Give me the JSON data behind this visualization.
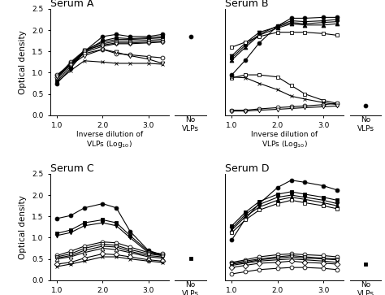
{
  "x_ticks": [
    1.0,
    2.0,
    3.0
  ],
  "x_vals": [
    1.0,
    1.3,
    1.6,
    2.0,
    2.3,
    2.6,
    3.0,
    3.3
  ],
  "serum_A": {
    "title": "Serum A",
    "no_vlp_y": 1.85,
    "no_vlp_marker": "o",
    "no_vlp_filled": true,
    "series": [
      {
        "y": [
          0.75,
          1.1,
          1.5,
          1.85,
          1.9,
          1.85,
          1.85,
          1.9
        ],
        "marker": "o",
        "filled": true
      },
      {
        "y": [
          0.8,
          1.15,
          1.5,
          1.75,
          1.82,
          1.8,
          1.82,
          1.85
        ],
        "marker": "s",
        "filled": true
      },
      {
        "y": [
          0.85,
          1.2,
          1.52,
          1.72,
          1.78,
          1.78,
          1.8,
          1.82
        ],
        "marker": "v",
        "filled": true
      },
      {
        "y": [
          0.88,
          1.22,
          1.5,
          1.68,
          1.74,
          1.74,
          1.76,
          1.78
        ],
        "marker": "s",
        "filled": false
      },
      {
        "y": [
          0.9,
          1.25,
          1.52,
          1.65,
          1.7,
          1.7,
          1.72,
          1.74
        ],
        "marker": "o",
        "filled": false
      },
      {
        "y": [
          0.92,
          1.22,
          1.48,
          1.62,
          1.68,
          1.68,
          1.7,
          1.72
        ],
        "marker": "v",
        "filled": false
      },
      {
        "y": [
          0.95,
          1.2,
          1.45,
          1.55,
          1.45,
          1.42,
          1.38,
          1.35
        ],
        "marker": "o",
        "filled": false
      },
      {
        "y": [
          0.78,
          1.05,
          1.28,
          1.25,
          1.22,
          1.22,
          1.22,
          1.2
        ],
        "marker": "x",
        "filled": false
      },
      {
        "y": [
          0.92,
          1.18,
          1.4,
          1.55,
          1.48,
          1.4,
          1.32,
          1.22
        ],
        "marker": "v",
        "filled": false
      }
    ]
  },
  "serum_B": {
    "title": "Serum B",
    "no_vlp_y": 0.22,
    "no_vlp_marker": "o",
    "no_vlp_filled": true,
    "series": [
      {
        "y": [
          0.95,
          1.3,
          1.7,
          2.1,
          2.28,
          2.28,
          2.3,
          2.3
        ],
        "marker": "o",
        "filled": true
      },
      {
        "y": [
          1.35,
          1.65,
          1.9,
          2.1,
          2.22,
          2.2,
          2.22,
          2.25
        ],
        "marker": "s",
        "filled": true
      },
      {
        "y": [
          1.4,
          1.7,
          1.95,
          2.08,
          2.18,
          2.15,
          2.18,
          2.2
        ],
        "marker": "v",
        "filled": true
      },
      {
        "y": [
          1.3,
          1.6,
          1.88,
          2.05,
          2.15,
          2.12,
          2.12,
          2.15
        ],
        "marker": "^",
        "filled": true
      },
      {
        "y": [
          1.6,
          1.72,
          1.85,
          1.95,
          1.95,
          1.95,
          1.92,
          1.88
        ],
        "marker": "s",
        "filled": false
      },
      {
        "y": [
          0.88,
          0.95,
          0.95,
          0.9,
          0.7,
          0.5,
          0.35,
          0.28
        ],
        "marker": "s",
        "filled": false
      },
      {
        "y": [
          0.9,
          0.88,
          0.75,
          0.6,
          0.45,
          0.38,
          0.3,
          0.25
        ],
        "marker": "x",
        "filled": false
      },
      {
        "y": [
          0.12,
          0.12,
          0.15,
          0.18,
          0.2,
          0.22,
          0.25,
          0.28
        ],
        "marker": "o",
        "filled": false
      },
      {
        "y": [
          0.1,
          0.1,
          0.12,
          0.14,
          0.16,
          0.18,
          0.2,
          0.22
        ],
        "marker": "v",
        "filled": false
      }
    ]
  },
  "serum_C": {
    "title": "Serum C",
    "no_vlp_y": 0.52,
    "no_vlp_marker": "s",
    "no_vlp_filled": true,
    "series": [
      {
        "y": [
          1.45,
          1.52,
          1.7,
          1.8,
          1.7,
          1.15,
          0.7,
          0.6
        ],
        "marker": "o",
        "filled": true
      },
      {
        "y": [
          1.1,
          1.18,
          1.35,
          1.42,
          1.35,
          1.05,
          0.68,
          0.6
        ],
        "marker": "s",
        "filled": true
      },
      {
        "y": [
          1.05,
          1.12,
          1.28,
          1.35,
          1.28,
          1.0,
          0.65,
          0.58
        ],
        "marker": "v",
        "filled": true
      },
      {
        "y": [
          0.58,
          0.68,
          0.8,
          0.9,
          0.88,
          0.78,
          0.65,
          0.62
        ],
        "marker": "o",
        "filled": false
      },
      {
        "y": [
          0.55,
          0.62,
          0.75,
          0.85,
          0.82,
          0.72,
          0.62,
          0.58
        ],
        "marker": "s",
        "filled": false
      },
      {
        "y": [
          0.52,
          0.58,
          0.7,
          0.8,
          0.78,
          0.68,
          0.58,
          0.55
        ],
        "marker": "v",
        "filled": false
      },
      {
        "y": [
          0.5,
          0.55,
          0.65,
          0.75,
          0.72,
          0.65,
          0.55,
          0.52
        ],
        "marker": "^",
        "filled": false
      },
      {
        "y": [
          0.38,
          0.42,
          0.52,
          0.62,
          0.6,
          0.55,
          0.48,
          0.45
        ],
        "marker": "D",
        "filled": false
      },
      {
        "y": [
          0.32,
          0.38,
          0.45,
          0.55,
          0.55,
          0.5,
          0.45,
          0.42
        ],
        "marker": "x",
        "filled": false
      }
    ]
  },
  "serum_D": {
    "title": "Serum D",
    "no_vlp_y": 0.38,
    "no_vlp_marker": "s",
    "no_vlp_filled": true,
    "series": [
      {
        "y": [
          0.95,
          1.45,
          1.8,
          2.18,
          2.35,
          2.3,
          2.22,
          2.12
        ],
        "marker": "o",
        "filled": true
      },
      {
        "y": [
          1.28,
          1.6,
          1.85,
          2.02,
          2.08,
          2.02,
          1.95,
          1.88
        ],
        "marker": "s",
        "filled": true
      },
      {
        "y": [
          1.22,
          1.55,
          1.78,
          1.95,
          2.0,
          1.95,
          1.88,
          1.8
        ],
        "marker": "v",
        "filled": true
      },
      {
        "y": [
          1.18,
          1.5,
          1.72,
          1.88,
          1.95,
          1.9,
          1.82,
          1.75
        ],
        "marker": "^",
        "filled": true
      },
      {
        "y": [
          1.12,
          1.42,
          1.65,
          1.8,
          1.88,
          1.82,
          1.75,
          1.68
        ],
        "marker": "s",
        "filled": false
      },
      {
        "y": [
          0.42,
          0.48,
          0.55,
          0.6,
          0.62,
          0.6,
          0.58,
          0.55
        ],
        "marker": "o",
        "filled": false
      },
      {
        "y": [
          0.4,
          0.45,
          0.5,
          0.55,
          0.58,
          0.55,
          0.52,
          0.5
        ],
        "marker": "s",
        "filled": false
      },
      {
        "y": [
          0.38,
          0.42,
          0.48,
          0.52,
          0.55,
          0.52,
          0.5,
          0.48
        ],
        "marker": "v",
        "filled": false
      },
      {
        "y": [
          0.35,
          0.4,
          0.45,
          0.48,
          0.5,
          0.48,
          0.45,
          0.42
        ],
        "marker": "^",
        "filled": false
      },
      {
        "y": [
          0.3,
          0.35,
          0.4,
          0.42,
          0.45,
          0.42,
          0.4,
          0.38
        ],
        "marker": "D",
        "filled": false
      },
      {
        "y": [
          0.15,
          0.2,
          0.25,
          0.28,
          0.3,
          0.3,
          0.28,
          0.25
        ],
        "marker": "o",
        "filled": false
      }
    ]
  },
  "ylim": [
    0.0,
    2.5
  ],
  "yticks": [
    0.0,
    0.5,
    1.0,
    1.5,
    2.0,
    2.5
  ],
  "ylabel": "Optical density",
  "no_vlp_label": "No\nVLPs",
  "linewidth": 0.8,
  "markersize": 3.5
}
